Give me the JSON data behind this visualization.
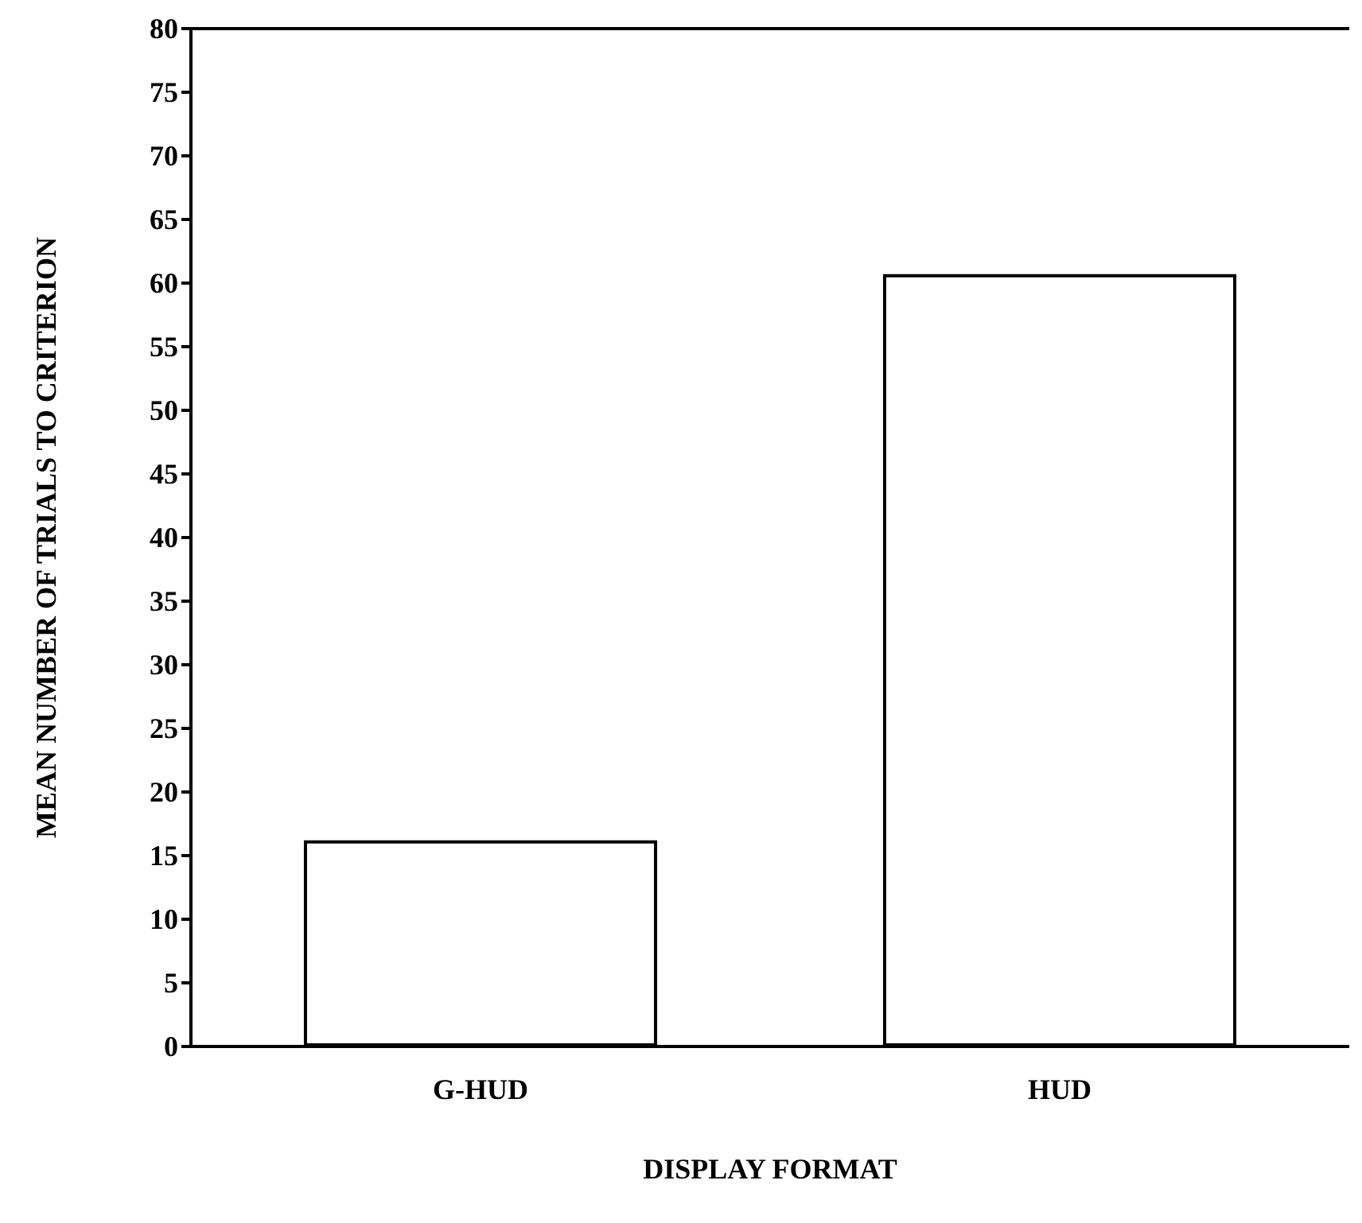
{
  "chart_data": {
    "type": "bar",
    "xlabel": "DISPLAY FORMAT",
    "ylabel": "MEAN NUMBER OF TRIALS TO CRITERION",
    "categories": [
      "G-HUD",
      "HUD"
    ],
    "values": [
      16.2,
      60.7
    ],
    "color": "#ffffff",
    "ylim": [
      0,
      80
    ],
    "yticks": [
      0,
      5,
      10,
      15,
      20,
      25,
      30,
      35,
      40,
      45,
      50,
      55,
      60,
      65,
      70,
      75,
      80
    ],
    "grid": false
  }
}
